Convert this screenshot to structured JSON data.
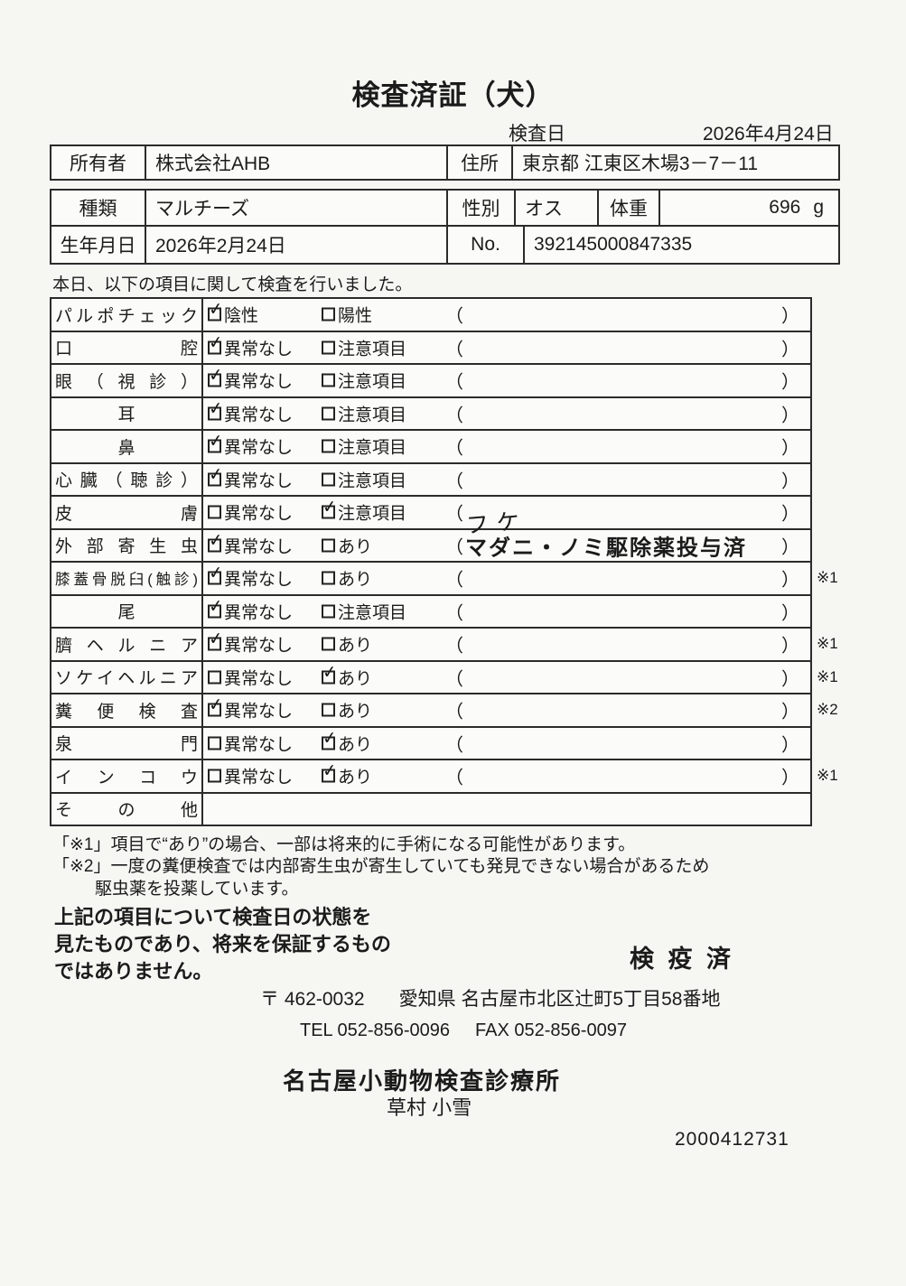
{
  "page": {
    "title": "検査済証（犬）",
    "inspection_date_label": "検査日",
    "inspection_date": "2026年4月24日",
    "intro": "本日、以下の項目に関して検査を行いました。",
    "doc_number": "2000412731"
  },
  "owner_box": {
    "owner_label": "所有者",
    "owner_value": "株式会社AHB",
    "address_label": "住所",
    "address_value": "東京都 江東区木場3－7－11"
  },
  "pet_box": {
    "breed_label": "種類",
    "breed_value": "マルチーズ",
    "sex_label": "性別",
    "sex_value": "オス",
    "weight_label": "体重",
    "weight_value": "696",
    "weight_unit": "g",
    "birth_label": "生年月日",
    "birth_value": "2026年2月24日",
    "no_label": "No.",
    "no_value": "392145000847335"
  },
  "table": {
    "paren_open": "（",
    "paren_close": "）",
    "check_mark": "✓",
    "rows": [
      {
        "label": "パルポチェック",
        "align": "justify",
        "opt1": {
          "text": "陰性",
          "checked": true
        },
        "opt2": {
          "text": "陽性",
          "checked": false
        },
        "paren": "",
        "paren_style": "",
        "note": ""
      },
      {
        "label": "口腔",
        "align": "justify",
        "opt1": {
          "text": "異常なし",
          "checked": true
        },
        "opt2": {
          "text": "注意項目",
          "checked": false
        },
        "paren": "",
        "paren_style": "",
        "note": ""
      },
      {
        "label": "眼（視診）",
        "align": "justify",
        "opt1": {
          "text": "異常なし",
          "checked": true
        },
        "opt2": {
          "text": "注意項目",
          "checked": false
        },
        "paren": "",
        "paren_style": "",
        "note": ""
      },
      {
        "label": "耳",
        "align": "center",
        "opt1": {
          "text": "異常なし",
          "checked": true
        },
        "opt2": {
          "text": "注意項目",
          "checked": false
        },
        "paren": "",
        "paren_style": "",
        "note": ""
      },
      {
        "label": "鼻",
        "align": "center",
        "opt1": {
          "text": "異常なし",
          "checked": true
        },
        "opt2": {
          "text": "注意項目",
          "checked": false
        },
        "paren": "",
        "paren_style": "",
        "note": ""
      },
      {
        "label": "心臓（聴診）",
        "align": "justify",
        "opt1": {
          "text": "異常なし",
          "checked": true
        },
        "opt2": {
          "text": "注意項目",
          "checked": false
        },
        "paren": "",
        "paren_style": "",
        "note": ""
      },
      {
        "label": "皮膚",
        "align": "justify",
        "opt1": {
          "text": "異常なし",
          "checked": false
        },
        "opt2": {
          "text": "注意項目",
          "checked": true
        },
        "paren": "フケ",
        "paren_style": "handwritten",
        "note": ""
      },
      {
        "label": "外部寄生虫",
        "align": "justify",
        "opt1": {
          "text": "異常なし",
          "checked": true
        },
        "opt2": {
          "text": "あり",
          "checked": false
        },
        "paren": "マダニ・ノミ駆除薬投与済",
        "paren_style": "printed",
        "note": ""
      },
      {
        "label": "膝蓋骨脱臼(触診)",
        "align": "justify",
        "small": true,
        "opt1": {
          "text": "異常なし",
          "checked": true
        },
        "opt2": {
          "text": "あり",
          "checked": false
        },
        "paren": "",
        "paren_style": "",
        "note": "※1"
      },
      {
        "label": "尾",
        "align": "center",
        "opt1": {
          "text": "異常なし",
          "checked": true
        },
        "opt2": {
          "text": "注意項目",
          "checked": false
        },
        "paren": "",
        "paren_style": "",
        "note": ""
      },
      {
        "label": "臍ヘルニア",
        "align": "justify",
        "opt1": {
          "text": "異常なし",
          "checked": true
        },
        "opt2": {
          "text": "あり",
          "checked": false
        },
        "paren": "",
        "paren_style": "",
        "note": "※1"
      },
      {
        "label": "ソケイヘルニア",
        "align": "justify",
        "opt1": {
          "text": "異常なし",
          "checked": false
        },
        "opt2": {
          "text": "あり",
          "checked": true
        },
        "paren": "",
        "paren_style": "",
        "note": "※1"
      },
      {
        "label": "糞便検査",
        "align": "justify",
        "opt1": {
          "text": "異常なし",
          "checked": true
        },
        "opt2": {
          "text": "あり",
          "checked": false
        },
        "paren": "",
        "paren_style": "",
        "note": "※2"
      },
      {
        "label": "泉門",
        "align": "justify",
        "opt1": {
          "text": "異常なし",
          "checked": false
        },
        "opt2": {
          "text": "あり",
          "checked": true
        },
        "paren": "",
        "paren_style": "",
        "note": ""
      },
      {
        "label": "インコウ",
        "align": "justify",
        "opt1": {
          "text": "異常なし",
          "checked": false
        },
        "opt2": {
          "text": "あり",
          "checked": true
        },
        "paren": "",
        "paren_style": "",
        "note": "※1"
      },
      {
        "label": "その他",
        "align": "justify",
        "empty": true,
        "note": ""
      }
    ]
  },
  "footnotes": {
    "note1": "「※1」項目で“あり”の場合、一部は将来的に手術になる可能性があります。",
    "note2_line1": "「※2」一度の糞便検査では内部寄生虫が寄生していても発見できない場合があるため",
    "note2_line2": "駆虫薬を投薬しています。"
  },
  "disclaimer": {
    "lines": [
      "上記の項目について検査日の状態を",
      "見たものであり、将来を保証するもの",
      "ではありません。"
    ]
  },
  "stamp": "検 疫 済",
  "clinic": {
    "postal": "〒 462-0032",
    "address": "愛知県 名古屋市北区辻町5丁目58番地",
    "tel": "TEL 052-856-0096",
    "fax": "FAX 052-856-0097",
    "name": "名古屋小動物検査診療所",
    "examiner": "草村 小雪"
  }
}
